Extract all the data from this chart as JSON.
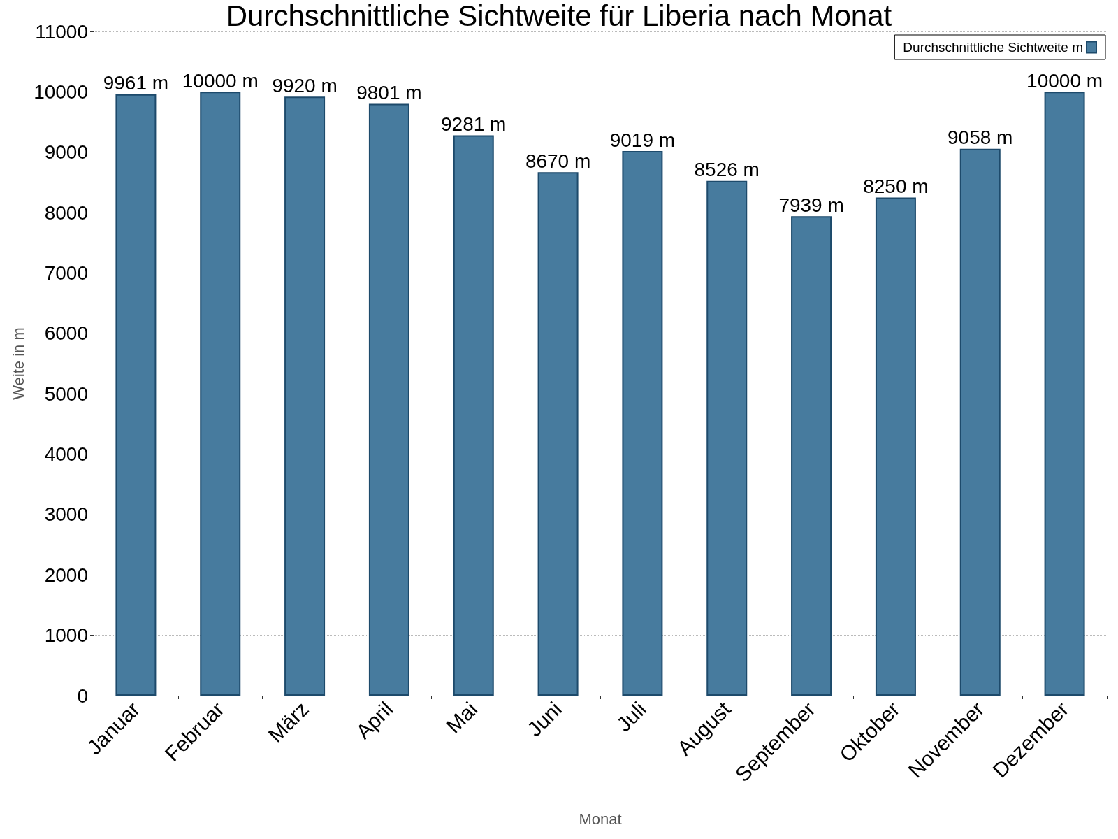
{
  "chart_data": {
    "type": "bar",
    "title": "Durchschnittliche Sichtweite für Liberia nach Monat",
    "xlabel": "Monat",
    "ylabel": "Weite in m",
    "categories": [
      "Januar",
      "Februar",
      "März",
      "April",
      "Mai",
      "Juni",
      "Juli",
      "August",
      "September",
      "Oktober",
      "November",
      "Dezember"
    ],
    "series": [
      {
        "name": "Durchschnittliche Sichtweite m",
        "color": "#477b9e",
        "values": [
          9961,
          10000,
          9920,
          9801,
          9281,
          8670,
          9019,
          8526,
          7939,
          8250,
          9058,
          10000
        ],
        "value_labels": [
          "9961 m",
          "10000 m",
          "9920 m",
          "9801 m",
          "9281 m",
          "8670 m",
          "9019 m",
          "8526 m",
          "7939 m",
          "8250 m",
          "9058 m",
          "10000 m"
        ]
      }
    ],
    "ylim": [
      0,
      11000
    ],
    "yticks": [
      0,
      1000,
      2000,
      3000,
      4000,
      5000,
      6000,
      7000,
      8000,
      9000,
      10000,
      11000
    ],
    "grid": "y",
    "legend": "top right"
  }
}
